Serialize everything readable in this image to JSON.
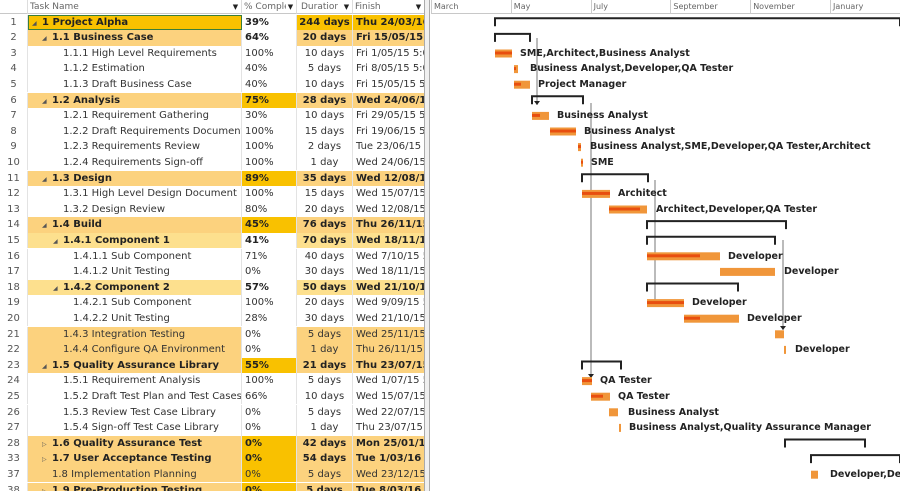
{
  "columns": {
    "task_name": "Task Name",
    "pct": "% Complet",
    "duration": "Duratior",
    "finish": "Finish"
  },
  "colors": {
    "deep": "#f9c100",
    "light": "#fcd27e",
    "pale": "#fde08e",
    "bar": "#f0963a",
    "progress": "#e84e0f",
    "summary": "#222222"
  },
  "rows": [
    {
      "num": "1",
      "name": "1 Project Alpha",
      "pct": "39%",
      "dur": "244 days",
      "finish": "Thu 24/03/16 5",
      "level": 0,
      "bold": true,
      "tog": "exp",
      "nc": "deep",
      "pc": "",
      "dc": "deep",
      "sel": true
    },
    {
      "num": "2",
      "name": "1.1 Business Case",
      "pct": "64%",
      "dur": "20 days",
      "finish": "Fri 15/05/15 5:",
      "level": 1,
      "bold": true,
      "tog": "exp",
      "nc": "light",
      "pc": "",
      "dc": "light"
    },
    {
      "num": "3",
      "name": "1.1.1 High Level Requirements",
      "pct": "100%",
      "dur": "10 days",
      "finish": "Fri 1/05/15 5:0",
      "level": 2
    },
    {
      "num": "4",
      "name": "1.1.2 Estimation",
      "pct": "40%",
      "dur": "5 days",
      "finish": "Fri 8/05/15 5:0",
      "level": 2
    },
    {
      "num": "5",
      "name": "1.1.3 Draft Business Case",
      "pct": "40%",
      "dur": "10 days",
      "finish": "Fri 15/05/15 5:",
      "level": 2
    },
    {
      "num": "6",
      "name": "1.2 Analysis",
      "pct": "75%",
      "dur": "28 days",
      "finish": "Wed 24/06/15",
      "level": 1,
      "bold": true,
      "tog": "exp",
      "nc": "light",
      "pc": "deep",
      "dc": "light"
    },
    {
      "num": "7",
      "name": "1.2.1 Requirement Gathering",
      "pct": "30%",
      "dur": "10 days",
      "finish": "Fri 29/05/15 5:",
      "level": 2
    },
    {
      "num": "8",
      "name": "1.2.2 Draft Requirements Document",
      "pct": "100%",
      "dur": "15 days",
      "finish": "Fri 19/06/15 5:",
      "level": 2
    },
    {
      "num": "9",
      "name": "1.2.3 Requirements Review",
      "pct": "100%",
      "dur": "2 days",
      "finish": "Tue 23/06/15 5",
      "level": 2
    },
    {
      "num": "10",
      "name": "1.2.4 Requirements Sign-off",
      "pct": "100%",
      "dur": "1 day",
      "finish": "Wed 24/06/15",
      "level": 2
    },
    {
      "num": "11",
      "name": "1.3 Design",
      "pct": "89%",
      "dur": "35 days",
      "finish": "Wed 12/08/15",
      "level": 1,
      "bold": true,
      "tog": "exp",
      "nc": "light",
      "pc": "deep",
      "dc": "light"
    },
    {
      "num": "12",
      "name": "1.3.1 High Level Design Document",
      "pct": "100%",
      "dur": "15 days",
      "finish": "Wed 15/07/15",
      "level": 2
    },
    {
      "num": "13",
      "name": "1.3.2 Design Review",
      "pct": "80%",
      "dur": "20 days",
      "finish": "Wed 12/08/15",
      "level": 2
    },
    {
      "num": "14",
      "name": "1.4 Build",
      "pct": "45%",
      "dur": "76 days",
      "finish": "Thu 26/11/15 5",
      "level": 1,
      "bold": true,
      "tog": "exp",
      "nc": "light",
      "pc": "deep",
      "dc": "light"
    },
    {
      "num": "15",
      "name": "1.4.1 Component 1",
      "pct": "41%",
      "dur": "70 days",
      "finish": "Wed 18/11/15",
      "level": 2,
      "bold": true,
      "tog": "exp",
      "nc": "pale",
      "pc": "",
      "dc": "pale"
    },
    {
      "num": "16",
      "name": "1.4.1.1 Sub Component",
      "pct": "71%",
      "dur": "40 days",
      "finish": "Wed 7/10/15 5",
      "level": 3
    },
    {
      "num": "17",
      "name": "1.4.1.2 Unit Testing",
      "pct": "0%",
      "dur": "30 days",
      "finish": "Wed 18/11/15",
      "level": 3
    },
    {
      "num": "18",
      "name": "1.4.2 Component 2",
      "pct": "57%",
      "dur": "50 days",
      "finish": "Wed 21/10/15",
      "level": 2,
      "bold": true,
      "tog": "exp",
      "nc": "pale",
      "pc": "",
      "dc": "pale"
    },
    {
      "num": "19",
      "name": "1.4.2.1 Sub Component",
      "pct": "100%",
      "dur": "20 days",
      "finish": "Wed 9/09/15 5",
      "level": 3
    },
    {
      "num": "20",
      "name": "1.4.2.2 Unit Testing",
      "pct": "28%",
      "dur": "30 days",
      "finish": "Wed 21/10/15",
      "level": 3
    },
    {
      "num": "21",
      "name": "1.4.3 Integration Testing",
      "pct": "0%",
      "dur": "5 days",
      "finish": "Wed 25/11/15",
      "level": 2,
      "nc": "light",
      "pc": "",
      "dc": "light"
    },
    {
      "num": "22",
      "name": "1.4.4 Configure QA Environment",
      "pct": "0%",
      "dur": "1 day",
      "finish": "Thu 26/11/15 5",
      "level": 2,
      "nc": "light",
      "pc": "",
      "dc": "light"
    },
    {
      "num": "23",
      "name": "1.5 Quality Assurance Library",
      "pct": "55%",
      "dur": "21 days",
      "finish": "Thu 23/07/15 5",
      "level": 1,
      "bold": true,
      "tog": "exp",
      "nc": "light",
      "pc": "deep",
      "dc": "light"
    },
    {
      "num": "24",
      "name": "1.5.1 Requirement Analysis",
      "pct": "100%",
      "dur": "5 days",
      "finish": "Wed 1/07/15 5",
      "level": 2
    },
    {
      "num": "25",
      "name": "1.5.2 Draft Test Plan and Test Cases",
      "pct": "66%",
      "dur": "10 days",
      "finish": "Wed 15/07/15",
      "level": 2
    },
    {
      "num": "26",
      "name": "1.5.3 Review Test Case Library",
      "pct": "0%",
      "dur": "5 days",
      "finish": "Wed 22/07/15",
      "level": 2
    },
    {
      "num": "27",
      "name": "1.5.4 Sign-off Test Case Library",
      "pct": "0%",
      "dur": "1 day",
      "finish": "Thu 23/07/15 5",
      "level": 2
    },
    {
      "num": "28",
      "name": "1.6 Quality Assurance Test",
      "pct": "0%",
      "dur": "42 days",
      "finish": "Mon 25/01/16",
      "level": 1,
      "bold": true,
      "tog": "col",
      "nc": "light",
      "pc": "deep",
      "dc": "light"
    },
    {
      "num": "33",
      "name": "1.7 User Acceptance Testing",
      "pct": "0%",
      "dur": "54 days",
      "finish": "Tue 1/03/16 5:",
      "level": 1,
      "bold": true,
      "tog": "col",
      "nc": "light",
      "pc": "deep",
      "dc": "light"
    },
    {
      "num": "37",
      "name": "1.8 Implementation Planning",
      "pct": "0%",
      "dur": "5 days",
      "finish": "Wed 23/12/15",
      "level": 1,
      "nc": "light",
      "pc": "deep",
      "dc": "light"
    },
    {
      "num": "38",
      "name": "1.9 Pre-Production Testing",
      "pct": "0%",
      "dur": "5 days",
      "finish": "Tue 8/03/16",
      "level": 1,
      "bold": true,
      "tog": "col",
      "nc": "light",
      "pc": "deep",
      "dc": "light"
    }
  ],
  "timescale": [
    "March",
    "May",
    "July",
    "September",
    "November",
    "January"
  ],
  "gantt": {
    "resources": {
      "3": "SME,Architect,Business Analyst",
      "4": "Business Analyst,Developer,QA Tester",
      "5": "Project Manager",
      "7": "Business Analyst",
      "8": "Business Analyst",
      "9": "Business Analyst,SME,Developer,QA Tester,Architect",
      "10": "SME",
      "12": "Architect",
      "13": "Architect,Developer,QA Tester",
      "16": "Developer",
      "17": "Developer",
      "19": "Developer",
      "20": "Developer",
      "22": "Developer",
      "24": "QA Tester",
      "25": "QA Tester",
      "26": "Business Analyst",
      "27": "Business Analyst,Quality Assurance Manager",
      "37": "Developer,Dep"
    }
  }
}
